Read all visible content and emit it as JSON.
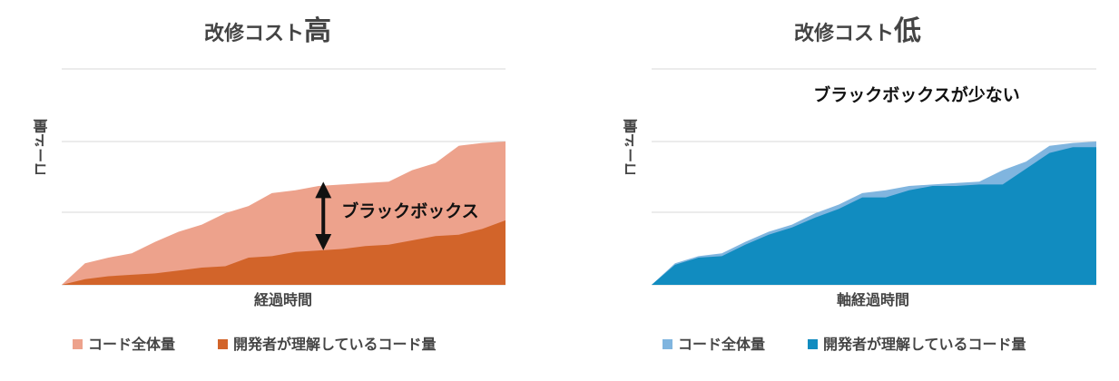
{
  "colors": {
    "left_total": "#EDA28C",
    "left_understood": "#D2642A",
    "right_total": "#80B5DF",
    "right_understood": "#118CC0",
    "gridline": "#D9D9D9",
    "text": "#333333",
    "text_strong": "#111111",
    "axis_label": "#444444"
  },
  "chart_data": [
    {
      "type": "area",
      "title_prefix": "改修コスト",
      "title_emphasis": "高",
      "xlabel": "経過時間",
      "ylabel": "コード量",
      "ylim": [
        0,
        100
      ],
      "grid": true,
      "legend_position": "bottom",
      "x": [
        0,
        1,
        2,
        3,
        4,
        5,
        6,
        7,
        8,
        9,
        10,
        11,
        12,
        13,
        14,
        15,
        16,
        17,
        18,
        19
      ],
      "series": [
        {
          "name": "コード全体量",
          "color_key": "left_total",
          "values": [
            0,
            15,
            19,
            22,
            30,
            37,
            42,
            50,
            55,
            64,
            66,
            69,
            70,
            71,
            72,
            80,
            85,
            97,
            99,
            100
          ]
        },
        {
          "name": "開発者が理解しているコード量",
          "color_key": "left_understood",
          "values": [
            0,
            4,
            6,
            7,
            8,
            10,
            12,
            13,
            19,
            20,
            23,
            24,
            25,
            27,
            28,
            31,
            34,
            35,
            39,
            45
          ]
        }
      ],
      "annotation": {
        "label": "ブラックボックス",
        "from_value": 70,
        "to_value": 26,
        "at_x": 11.2
      }
    },
    {
      "type": "area",
      "title_prefix": "改修コスト",
      "title_emphasis": "低",
      "xlabel": "軸経過時間",
      "ylabel": "コード量",
      "ylim": [
        0,
        100
      ],
      "grid": true,
      "legend_position": "bottom",
      "x": [
        0,
        1,
        2,
        3,
        4,
        5,
        6,
        7,
        8,
        9,
        10,
        11,
        12,
        13,
        14,
        15,
        16,
        17,
        18,
        19
      ],
      "series": [
        {
          "name": "コード全体量",
          "color_key": "right_total",
          "values": [
            0,
            15,
            20,
            22,
            30,
            37,
            42,
            50,
            56,
            64,
            66,
            69,
            70,
            71,
            72,
            80,
            86,
            97,
            99,
            100
          ]
        },
        {
          "name": "開発者が理解しているコード量",
          "color_key": "right_understood",
          "values": [
            0,
            14,
            19,
            20,
            28,
            35,
            40,
            47,
            53,
            61,
            61,
            66,
            69,
            69,
            70,
            70,
            81,
            92,
            96,
            96
          ]
        }
      ],
      "annotation": {
        "label": "ブラックボックスが少ない"
      }
    }
  ]
}
